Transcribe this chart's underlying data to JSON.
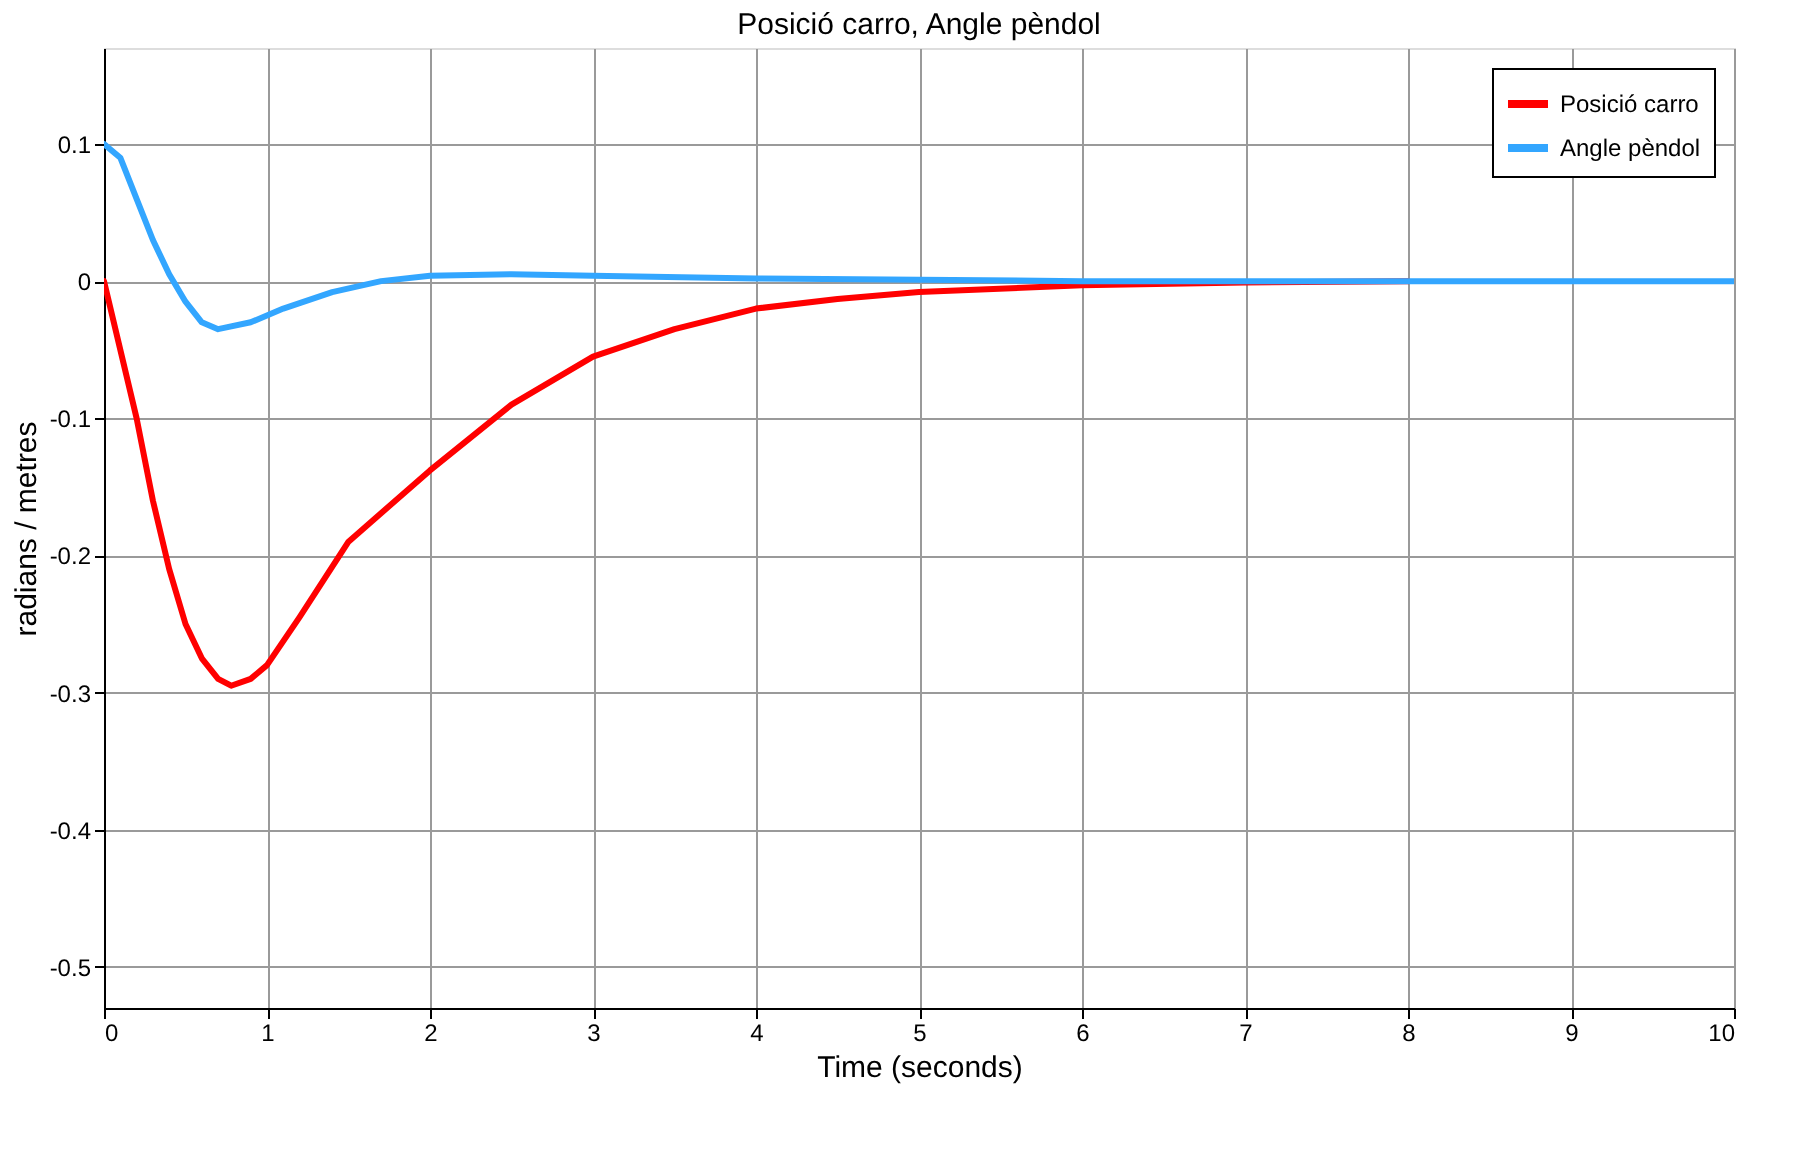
{
  "chart_data": {
    "type": "line",
    "title": "Posició carro, Angle pèndol",
    "xlabel": "Time (seconds)",
    "ylabel": "radians / metres",
    "xlim": [
      0,
      10
    ],
    "xticks": [
      0,
      1,
      2,
      3,
      4,
      5,
      6,
      7,
      8,
      9,
      10
    ],
    "ylim": [
      -0.53,
      0.17
    ],
    "yticks": [
      0.1,
      0,
      -0.1,
      -0.2,
      -0.3,
      -0.4,
      -0.5
    ],
    "grid": true,
    "legend": "top right",
    "marker": "none",
    "line_style": "solid",
    "series": [
      {
        "name": "Posició carro",
        "color": "#ff0000",
        "x": [
          0,
          0.1,
          0.2,
          0.3,
          0.4,
          0.5,
          0.6,
          0.7,
          0.78,
          0.9,
          1.0,
          1.2,
          1.5,
          2,
          2.5,
          3,
          3.5,
          4,
          4.5,
          5,
          6,
          7,
          8
        ],
        "values": [
          0,
          -0.05,
          -0.1,
          -0.16,
          -0.21,
          -0.25,
          -0.275,
          -0.29,
          -0.295,
          -0.29,
          -0.28,
          -0.245,
          -0.19,
          -0.138,
          -0.09,
          -0.055,
          -0.035,
          -0.02,
          -0.013,
          -0.008,
          -0.003,
          -0.001,
          0
        ]
      },
      {
        "name": "Angle pèndol",
        "color": "#33a6ff",
        "x": [
          0,
          0.1,
          0.2,
          0.3,
          0.4,
          0.5,
          0.6,
          0.7,
          0.9,
          1.1,
          1.4,
          1.7,
          2,
          2.5,
          3,
          4,
          5,
          6,
          8,
          10
        ],
        "values": [
          0.1,
          0.09,
          0.06,
          0.03,
          0.005,
          -0.015,
          -0.03,
          -0.035,
          -0.03,
          -0.02,
          -0.008,
          0,
          0.004,
          0.005,
          0.004,
          0.002,
          0.001,
          0,
          0,
          0
        ]
      }
    ]
  }
}
